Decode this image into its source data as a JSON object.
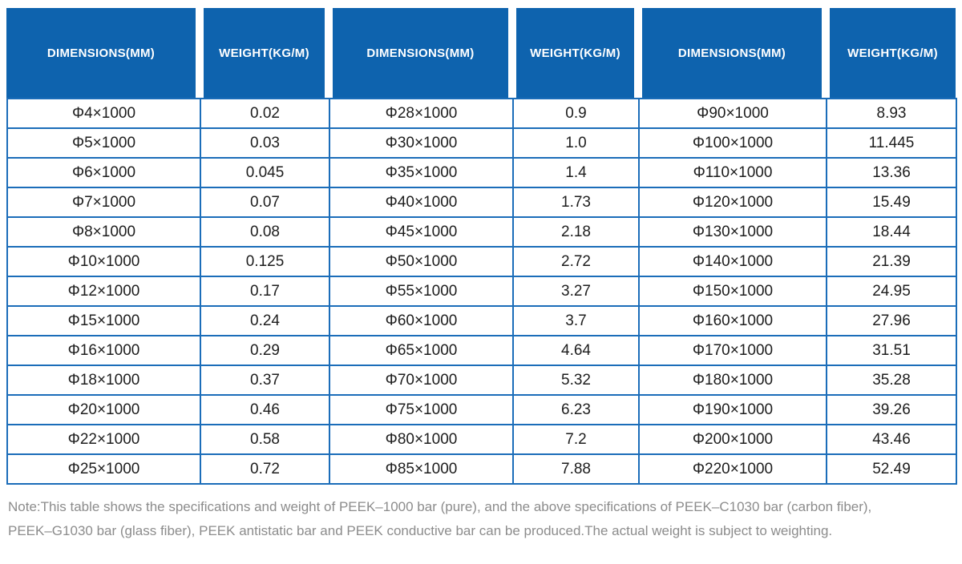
{
  "colors": {
    "header_background": "#0e63ae",
    "header_text": "#ffffff",
    "grid_border": "#1b6db9",
    "cell_text": "#1d1d1d",
    "note_text": "#8c8c8c"
  },
  "table": {
    "columns": [
      "DIMENSIONS(MM)",
      "WEIGHT(KG/M)",
      "DIMENSIONS(MM)",
      "WEIGHT(KG/M)",
      "DIMENSIONS(MM)",
      "WEIGHT(KG/M)"
    ],
    "rows": [
      [
        "Φ4×1000",
        "0.02",
        "Φ28×1000",
        "0.9",
        "Φ90×1000",
        "8.93"
      ],
      [
        "Φ5×1000",
        "0.03",
        "Φ30×1000",
        "1.0",
        "Φ100×1000",
        "11.445"
      ],
      [
        "Φ6×1000",
        "0.045",
        "Φ35×1000",
        "1.4",
        "Φ110×1000",
        "13.36"
      ],
      [
        "Φ7×1000",
        "0.07",
        "Φ40×1000",
        "1.73",
        "Φ120×1000",
        "15.49"
      ],
      [
        "Φ8×1000",
        "0.08",
        "Φ45×1000",
        "2.18",
        "Φ130×1000",
        "18.44"
      ],
      [
        "Φ10×1000",
        "0.125",
        "Φ50×1000",
        "2.72",
        "Φ140×1000",
        "21.39"
      ],
      [
        "Φ12×1000",
        "0.17",
        "Φ55×1000",
        "3.27",
        "Φ150×1000",
        "24.95"
      ],
      [
        "Φ15×1000",
        "0.24",
        "Φ60×1000",
        "3.7",
        "Φ160×1000",
        "27.96"
      ],
      [
        "Φ16×1000",
        "0.29",
        "Φ65×1000",
        "4.64",
        "Φ170×1000",
        "31.51"
      ],
      [
        "Φ18×1000",
        "0.37",
        "Φ70×1000",
        "5.32",
        "Φ180×1000",
        "35.28"
      ],
      [
        "Φ20×1000",
        "0.46",
        "Φ75×1000",
        "6.23",
        "Φ190×1000",
        "39.26"
      ],
      [
        "Φ22×1000",
        "0.58",
        "Φ80×1000",
        "7.2",
        "Φ200×1000",
        "43.46"
      ],
      [
        "Φ25×1000",
        "0.72",
        "Φ85×1000",
        "7.88",
        "Φ220×1000",
        "52.49"
      ]
    ]
  },
  "note": {
    "line1": "Note:This table shows the specifications and weight of PEEK–1000 bar (pure), and the above specifications of PEEK–C1030 bar (carbon fiber),",
    "line2": "PEEK–G1030 bar (glass fiber), PEEK antistatic bar and PEEK conductive bar can be produced.The actual weight is subject to weighting."
  }
}
